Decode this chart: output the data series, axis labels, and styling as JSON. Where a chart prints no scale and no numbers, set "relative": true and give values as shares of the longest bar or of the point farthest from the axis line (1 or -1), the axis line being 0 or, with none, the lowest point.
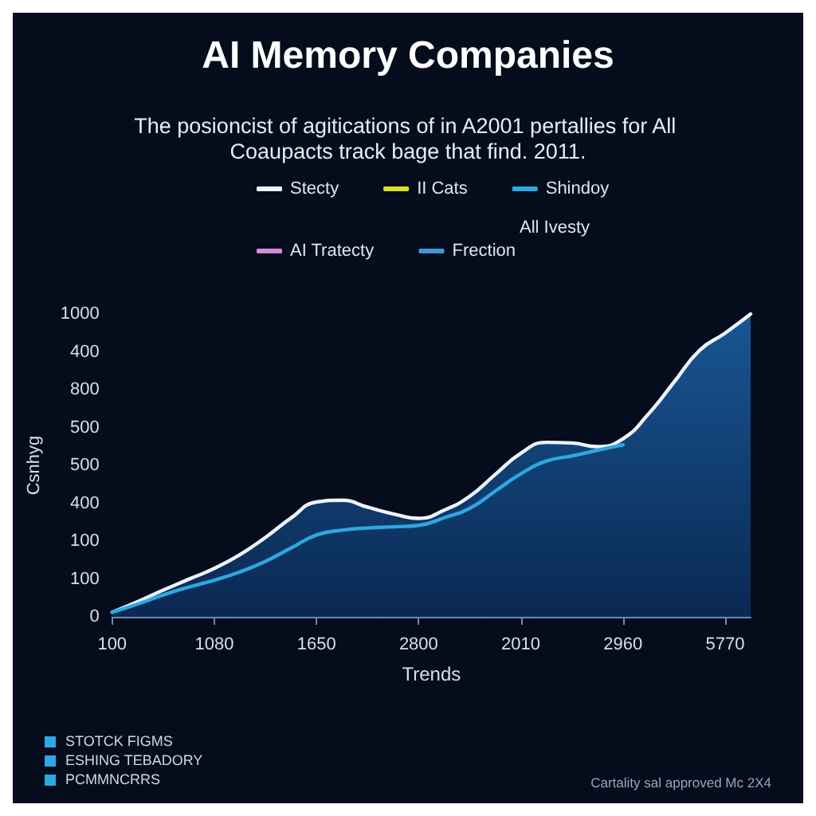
{
  "chart_data": {
    "type": "line",
    "title": "AI Memory Companies",
    "subtitle": "The posioncist of agitications of in A2001 pertallies for All Coaupacts track bage that find. 2011.",
    "xlabel": "Trends",
    "ylabel": "Csnhyg",
    "relative": true,
    "categories": [
      "100",
      null,
      null,
      null,
      "1080",
      null,
      null,
      null,
      "1650",
      null,
      null,
      null,
      "2800",
      null,
      null,
      null,
      "2010",
      null,
      null,
      null,
      "2960",
      null,
      null,
      null,
      "5770",
      null
    ],
    "legend": "top",
    "marker": "none",
    "line_style": "solid",
    "series": [
      {
        "name": "Stecty",
        "type": "area",
        "color": "#eef3ff",
        "values": [
          0.015,
          0.05,
          0.088,
          0.124,
          0.16,
          0.205,
          0.262,
          0.326,
          0.379,
          0.385,
          0.362,
          0.34,
          0.325,
          0.352,
          0.398,
          0.47,
          0.54,
          0.576,
          0.574,
          0.562,
          0.588,
          0.67,
          0.775,
          0.88,
          0.937,
          1
        ]
      },
      {
        "name": "II Cats",
        "color": "#d8e02a",
        "values": [
          null,
          null,
          null,
          null,
          null,
          null,
          null,
          null,
          null,
          null,
          null,
          null,
          null,
          null,
          null,
          null,
          null,
          null,
          null,
          null,
          null,
          null,
          null,
          null,
          null,
          null
        ]
      },
      {
        "name": "Shindoy",
        "color": "#2ea8e0",
        "values": [
          0.015,
          0.042,
          0.072,
          0.098,
          0.121,
          0.148,
          0.183,
          0.227,
          0.27,
          0.286,
          0.293,
          0.297,
          0.302,
          0.327,
          0.358,
          0.415,
          0.472,
          0.514,
          0.531,
          0.55,
          0.568,
          null,
          null,
          null,
          null,
          null
        ]
      },
      {
        "name": "AI Tratecty",
        "color": "#d88ad8",
        "values": [
          null,
          null,
          null,
          null,
          null,
          null,
          null,
          null,
          null,
          null,
          null,
          null,
          null,
          null,
          null,
          null,
          null,
          null,
          null,
          null,
          null,
          null,
          null,
          null,
          null,
          null
        ]
      },
      {
        "name": "Frection",
        "color": "#3c9ad8",
        "values": [
          null,
          null,
          null,
          null,
          null,
          null,
          null,
          null,
          null,
          null,
          null,
          null,
          null,
          null,
          null,
          null,
          null,
          null,
          null,
          null,
          null,
          null,
          null,
          null,
          null,
          null
        ]
      }
    ],
    "annotations": [
      "All Ivesty",
      "STOTCK FIGMS",
      "ESHING TEBADORY",
      "PCMMNCRRS",
      "Cartality sal approved Mc 2X4",
      "0",
      "100",
      "100",
      "400",
      "500",
      "500",
      "800",
      "400",
      "1000"
    ]
  }
}
